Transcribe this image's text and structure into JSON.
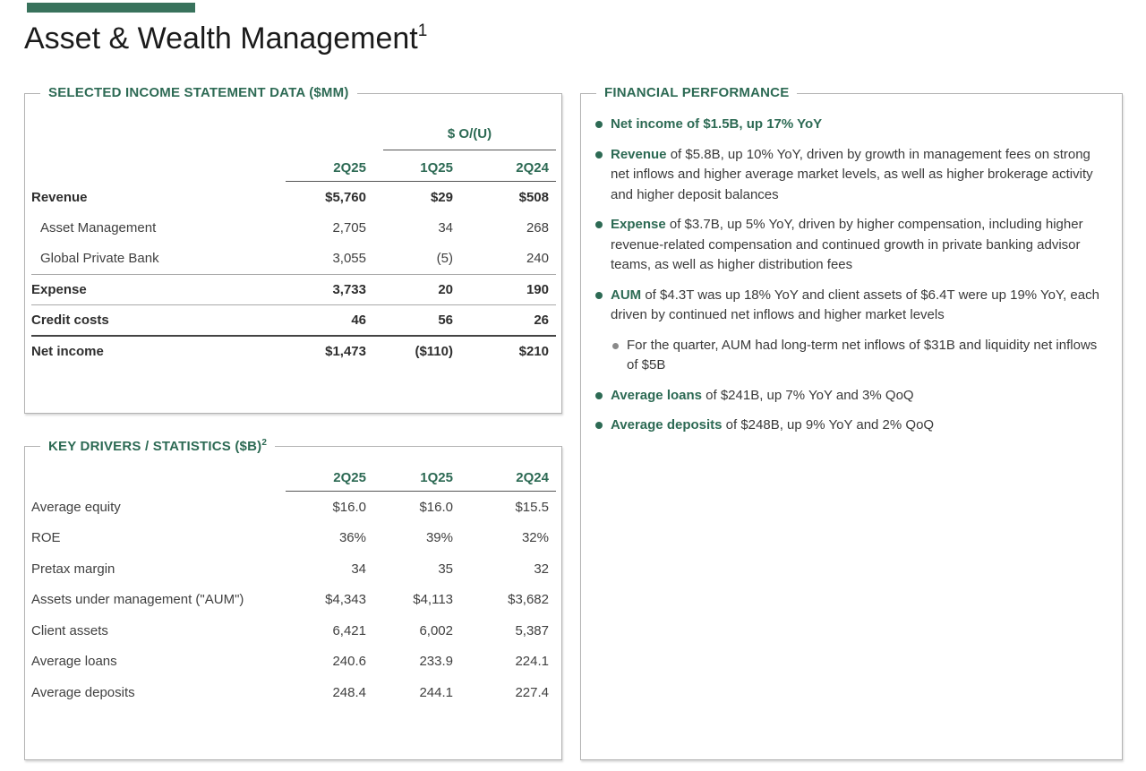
{
  "header": {
    "title": "Asset & Wealth Management",
    "superscript": "1"
  },
  "colors": {
    "accent_green": "#2d6a54",
    "bar_green": "#38725c",
    "panel_border_gray": "#b3b3b3"
  },
  "income_statement": {
    "title": "SELECTED INCOME STATEMENT DATA ($MM)",
    "group_header": "$ O/(U)",
    "columns": [
      "2Q25",
      "1Q25",
      "2Q24"
    ],
    "rows": [
      {
        "label": "Revenue",
        "values": [
          "$5,760",
          "$29",
          "$508"
        ]
      },
      {
        "label": "Asset Management",
        "values": [
          "2,705",
          "34",
          "268"
        ]
      },
      {
        "label": "Global Private Bank",
        "values": [
          "3,055",
          "(5)",
          "240"
        ]
      },
      {
        "label": "Expense",
        "values": [
          "3,733",
          "20",
          "190"
        ]
      },
      {
        "label": "Credit costs",
        "values": [
          "46",
          "56",
          "26"
        ]
      },
      {
        "label": "Net income",
        "values": [
          "$1,473",
          "($110)",
          "$210"
        ]
      }
    ]
  },
  "key_drivers": {
    "title": "KEY DRIVERS / STATISTICS ($B)",
    "superscript": "2",
    "columns": [
      "2Q25",
      "1Q25",
      "2Q24"
    ],
    "rows": [
      {
        "label": "Average equity",
        "values": [
          "$16.0",
          "$16.0",
          "$15.5"
        ]
      },
      {
        "label": "ROE",
        "values": [
          "36%",
          "39%",
          "32%"
        ]
      },
      {
        "label": "Pretax margin",
        "values": [
          "34",
          "35",
          "32"
        ]
      },
      {
        "label": "Assets under management (\"AUM\")",
        "values": [
          "$4,343",
          "$4,113",
          "$3,682"
        ]
      },
      {
        "label": "Client assets",
        "values": [
          "6,421",
          "6,002",
          "5,387"
        ]
      },
      {
        "label": "Average loans",
        "values": [
          "240.6",
          "233.9",
          "224.1"
        ]
      },
      {
        "label": "Average deposits",
        "values": [
          "248.4",
          "244.1",
          "227.4"
        ]
      }
    ]
  },
  "financial_performance": {
    "title": "FINANCIAL PERFORMANCE",
    "bullets": [
      {
        "level": 1,
        "lead": "Net income of $1.5B, up 17% YoY",
        "rest": ""
      },
      {
        "level": 1,
        "lead": "Revenue",
        "rest": " of $5.8B, up 10% YoY, driven by growth in management fees on strong net inflows and higher average market levels, as well as higher brokerage activity and higher deposit balances"
      },
      {
        "level": 1,
        "lead": "Expense",
        "rest": " of $3.7B, up 5% YoY, driven by higher compensation, including higher revenue-related compensation and continued growth in private banking advisor teams, as well as higher distribution fees"
      },
      {
        "level": 1,
        "lead": "AUM",
        "rest": " of $4.3T was up 18% YoY and client assets of $6.4T were up 19% YoY, each driven by continued net inflows and higher market levels"
      },
      {
        "level": 2,
        "lead": "",
        "rest": "For the quarter, AUM had long-term net inflows of $31B and liquidity net inflows of $5B"
      },
      {
        "level": 1,
        "lead": "Average loans",
        "rest": " of $241B, up 7% YoY and 3% QoQ"
      },
      {
        "level": 1,
        "lead": "Average deposits",
        "rest": " of $248B, up 9% YoY and 2% QoQ"
      }
    ]
  }
}
